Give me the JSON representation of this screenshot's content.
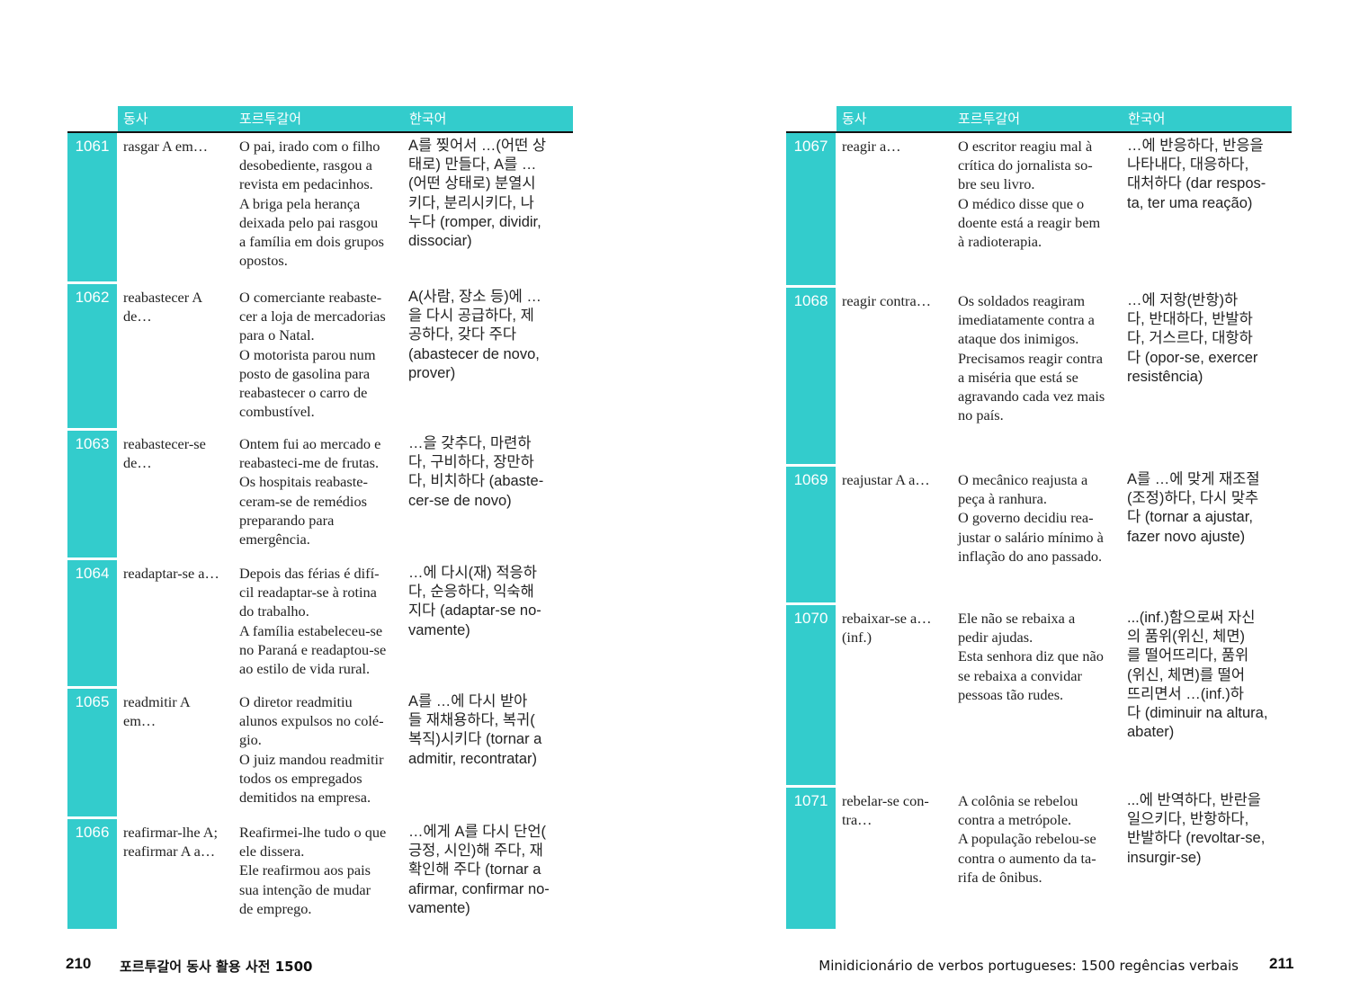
{
  "headers": {
    "verb": "동사",
    "portuguese": "포르투갈어",
    "korean": "한국어"
  },
  "left_page": {
    "entries": [
      {
        "num": "1061",
        "verb": "rasgar A em…",
        "pt": "O pai, irado com o filho\ndesobediente, rasgou a\nrevista em pedacinhos.\nA briga pela herança\ndeixada pelo pai rasgou\na família em dois grupos\nopostos.",
        "ko": "A를 찢어서 …(어떤 상\n태로) 만들다, A를 …\n(어떤 상태로) 분열시\n키다, 분리시키다, 나\n누다 (romper, dividir,\ndissociar)"
      },
      {
        "num": "1062",
        "verb": "reabastecer A\nde…",
        "pt": "O comerciante reabaste-\ncer a loja de mercadorias\npara o Natal.\nO motorista parou num\nposto de gasolina para\nreabastecer o carro de\ncombustível.",
        "ko": "A(사람, 장소 등)에 …\n을 다시 공급하다, 제\n공하다, 갖다 주다\n(abastecer de novo,\nprover)"
      },
      {
        "num": "1063",
        "verb": "reabastecer-se\nde…",
        "pt": "Ontem fui ao mercado e\nreabasteci-me de frutas.\nOs hospitais reabaste-\nceram-se de remédios\npreparando para\nemergência.",
        "ko": "…을 갖추다, 마련하\n다, 구비하다, 장만하\n다, 비치하다 (abaste-\ncer-se de novo)"
      },
      {
        "num": "1064",
        "verb": "readaptar-se a…",
        "pt": "Depois das férias é difí-\ncil readaptar-se à rotina\ndo trabalho.\nA família estabeleceu-se\nno Paraná e readaptou-se\nao estilo de vida rural.",
        "ko": "…에 다시(재) 적응하\n다, 순응하다, 익숙해\n지다 (adaptar-se no-\nvamente)"
      },
      {
        "num": "1065",
        "verb": "readmitir A\nem…",
        "pt": "O diretor readmitiu\nalunos expulsos no colé-\ngio.\nO juiz mandou readmitir\ntodos os empregados\ndemitidos na empresa.",
        "ko": "A를 …에 다시 받아\n들   재채용하다, 복귀(\n복직)시키다 (tornar a\nadmitir, recontratar)"
      },
      {
        "num": "1066",
        "verb": "reafirmar-lhe A;\nreafirmar A a…",
        "pt": "Reafirmei-lhe tudo o que\nele dissera.\nEle reafirmou aos pais\nsua intenção de mudar\nde emprego.",
        "ko": "…에게 A를 다시 단언(\n긍정, 시인)해 주다, 재\n확인해 주다 (tornar a\nafirmar, confirmar no-\nvamente)"
      }
    ],
    "footer": {
      "page_number": "210",
      "title": "포르투갈어 동사 활용 사전 1500"
    }
  },
  "right_page": {
    "entries": [
      {
        "num": "1067",
        "verb": "reagir a…",
        "pt": "O escritor reagiu mal à\ncrítica do jornalista so-\nbre seu livro.\nO médico disse que o\ndoente está a reagir bem\nà radioterapia.",
        "ko": "…에 반응하다, 반응을\n나타내다, 대응하다,\n대처하다 (dar respos-\nta, ter uma reação)"
      },
      {
        "num": "1068",
        "verb": "reagir contra…",
        "pt": "Os soldados reagiram\nimediatamente contra a\nataque dos inimigos.\nPrecisamos reagir contra\na miséria que está se\nagravando cada vez mais\nno país.",
        "ko": "…에 저항(반항)하\n다, 반대하다, 반발하\n다, 거스르다, 대항하\n다 (opor-se, exercer\nresistência)"
      },
      {
        "num": "1069",
        "verb": "reajustar A a…",
        "pt": "O mecânico reajusta a\npeça à ranhura.\nO governo decidiu rea-\njustar o salário mínimo à\ninflação do ano passado.",
        "ko": "A를 …에 맞게 재조절\n(조정)하다, 다시 맞추\n다 (tornar a ajustar,\nfazer novo ajuste)"
      },
      {
        "num": "1070",
        "verb": "rebaixar-se a…\n(inf.)",
        "pt": "Ele não se rebaixa a\npedir ajudas.\nEsta senhora diz que não\nse rebaixa a convidar\npessoas tão rudes.",
        "ko": "...(inf.)함으로써 자신\n의 품위(위신, 체면)\n를 떨어뜨리다, 품위\n(위신, 체면)를 떨어\n뜨리면서 …(inf.)하\n다 (diminuir na altura,\nabater)"
      },
      {
        "num": "1071",
        "verb": "rebelar-se con-\ntra…",
        "pt": "A colônia se rebelou\ncontra a metrópole.\nA população rebelou-se\ncontra o aumento da ta-\nrifa de ônibus.",
        "ko": "...에 반역하다, 반란을\n일으키다, 반항하다,\n반발하다 (revoltar-se,\ninsurgir-se)"
      }
    ],
    "footer": {
      "title": "Minidicionário de verbos portugueses: 1500 regências verbais",
      "page_number": "211"
    }
  },
  "colors": {
    "accent": "#33cccc",
    "text": "#222222"
  }
}
